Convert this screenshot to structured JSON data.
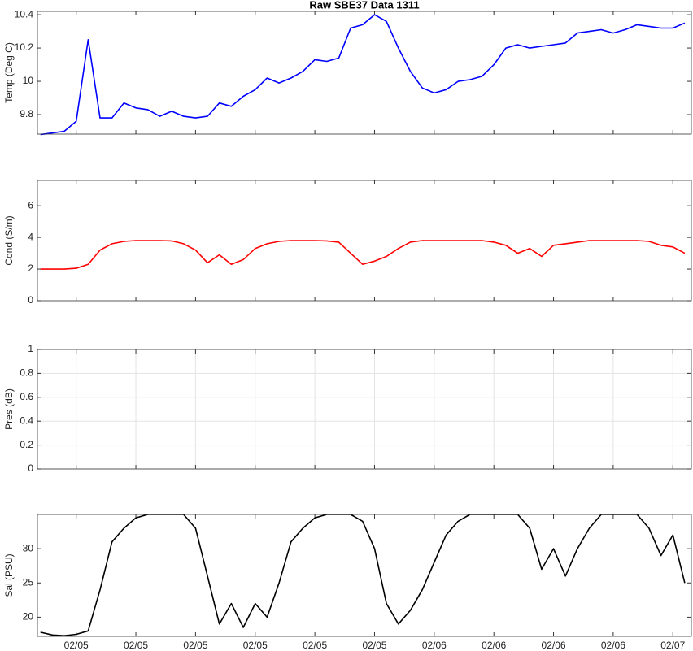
{
  "chart_data": [
    {
      "type": "line",
      "title": "Raw SBE37 Data 1311",
      "ylabel": "Temp (Deg C)",
      "x": [
        -6,
        -4,
        -2,
        0,
        2,
        4,
        6,
        8,
        10,
        12,
        14,
        16,
        18,
        20,
        22,
        24,
        26,
        28,
        30,
        32,
        34,
        36,
        38,
        40,
        42,
        44,
        46,
        48,
        50,
        52,
        54,
        56,
        58,
        60,
        62,
        64,
        66,
        68,
        70,
        72,
        74,
        76,
        78,
        80,
        82,
        84,
        86,
        88,
        90,
        92,
        94,
        96,
        98,
        100,
        102
      ],
      "series": [
        {
          "name": "Temp",
          "color": "#0000ff",
          "values": [
            9.68,
            9.69,
            9.7,
            9.76,
            10.25,
            9.78,
            9.78,
            9.87,
            9.84,
            9.83,
            9.79,
            9.82,
            9.79,
            9.78,
            9.79,
            9.87,
            9.85,
            9.91,
            9.95,
            10.02,
            9.99,
            10.02,
            10.06,
            10.13,
            10.12,
            10.14,
            10.32,
            10.34,
            10.4,
            10.36,
            10.2,
            10.06,
            9.96,
            9.93,
            9.95,
            10.0,
            10.01,
            10.03,
            10.1,
            10.2,
            10.22,
            10.2,
            10.21,
            10.22,
            10.23,
            10.29,
            10.3,
            10.31,
            10.29,
            10.31,
            10.34,
            10.33,
            10.32,
            10.32,
            10.35
          ]
        }
      ],
      "xlim": [
        -6.5,
        103.1
      ],
      "xticks": [
        0,
        10,
        20,
        30,
        40,
        50,
        60,
        70,
        80,
        90,
        100
      ],
      "ylim": [
        9.683,
        10.42
      ],
      "yticks": [
        9.8,
        10,
        10.2,
        10.4
      ],
      "grid": false
    },
    {
      "type": "line",
      "ylabel": "Cond (S/m)",
      "x": [
        -6,
        -4,
        -2,
        0,
        2,
        4,
        6,
        8,
        10,
        12,
        14,
        16,
        18,
        20,
        22,
        24,
        26,
        28,
        30,
        32,
        34,
        36,
        38,
        40,
        42,
        44,
        46,
        48,
        50,
        52,
        54,
        56,
        58,
        60,
        62,
        64,
        66,
        68,
        70,
        72,
        74,
        76,
        78,
        80,
        82,
        84,
        86,
        88,
        90,
        92,
        94,
        96,
        98,
        100,
        102
      ],
      "series": [
        {
          "name": "Cond",
          "color": "#ff0000",
          "values": [
            2.0,
            2.0,
            2.0,
            2.05,
            2.3,
            3.2,
            3.6,
            3.75,
            3.8,
            3.8,
            3.8,
            3.78,
            3.6,
            3.2,
            2.4,
            2.9,
            2.3,
            2.6,
            3.3,
            3.6,
            3.75,
            3.8,
            3.8,
            3.8,
            3.78,
            3.7,
            3.0,
            2.3,
            2.5,
            2.8,
            3.3,
            3.7,
            3.8,
            3.8,
            3.8,
            3.8,
            3.8,
            3.8,
            3.7,
            3.5,
            3.0,
            3.3,
            2.8,
            3.5,
            3.6,
            3.7,
            3.8,
            3.8,
            3.8,
            3.8,
            3.8,
            3.75,
            3.5,
            3.4,
            3.0
          ]
        }
      ],
      "xlim": [
        -6.5,
        103.1
      ],
      "xticks": [
        0,
        10,
        20,
        30,
        40,
        50,
        60,
        70,
        80,
        90,
        100
      ],
      "ylim": [
        0,
        7.6
      ],
      "yticks": [
        0,
        2,
        4,
        6
      ],
      "grid": false
    },
    {
      "type": "line",
      "ylabel": "Pres (dB)",
      "xlim": [
        -6.5,
        103.1
      ],
      "xticks": [
        0,
        10,
        20,
        30,
        40,
        50,
        60,
        70,
        80,
        90,
        100
      ],
      "ylim": [
        0,
        1
      ],
      "yticks": [
        0,
        0.2,
        0.4,
        0.6,
        0.8,
        1
      ],
      "grid": true
    },
    {
      "type": "line",
      "ylabel": "Sal (PSU)",
      "x": [
        -6,
        -4,
        -2,
        0,
        2,
        4,
        6,
        8,
        10,
        12,
        14,
        16,
        18,
        20,
        22,
        24,
        26,
        28,
        30,
        32,
        34,
        36,
        38,
        40,
        42,
        44,
        46,
        48,
        50,
        52,
        54,
        56,
        58,
        60,
        62,
        64,
        66,
        68,
        70,
        72,
        74,
        76,
        78,
        80,
        82,
        84,
        86,
        88,
        90,
        92,
        94,
        96,
        98,
        100,
        102
      ],
      "series": [
        {
          "name": "Sal",
          "color": "#000000",
          "values": [
            17.8,
            17.4,
            17.3,
            17.5,
            18,
            24,
            31,
            33,
            34.5,
            35,
            35,
            35,
            35,
            33,
            26,
            19,
            22,
            18.5,
            22,
            20,
            25,
            31,
            33,
            34.5,
            35,
            35,
            35,
            34,
            30,
            22,
            19,
            21,
            24,
            28,
            32,
            34,
            35,
            35,
            35,
            35,
            35,
            33,
            27,
            30,
            26,
            30,
            33,
            35,
            35,
            35,
            35,
            33,
            29,
            32,
            25
          ]
        }
      ],
      "xlim": [
        -6.5,
        103.1
      ],
      "xticks": [
        {
          "value": 0,
          "label": "02/05"
        },
        {
          "value": 10,
          "label": "02/05"
        },
        {
          "value": 20,
          "label": "02/05"
        },
        {
          "value": 30,
          "label": "02/05"
        },
        {
          "value": 40,
          "label": "02/05"
        },
        {
          "value": 50,
          "label": "02/05"
        },
        {
          "value": 60,
          "label": "02/06"
        },
        {
          "value": 70,
          "label": "02/06"
        },
        {
          "value": 80,
          "label": "02/06"
        },
        {
          "value": 90,
          "label": "02/06"
        },
        {
          "value": 100,
          "label": "02/07"
        }
      ],
      "ylim": [
        17.2,
        35
      ],
      "yticks": [
        20,
        25,
        30
      ],
      "grid": false
    }
  ]
}
